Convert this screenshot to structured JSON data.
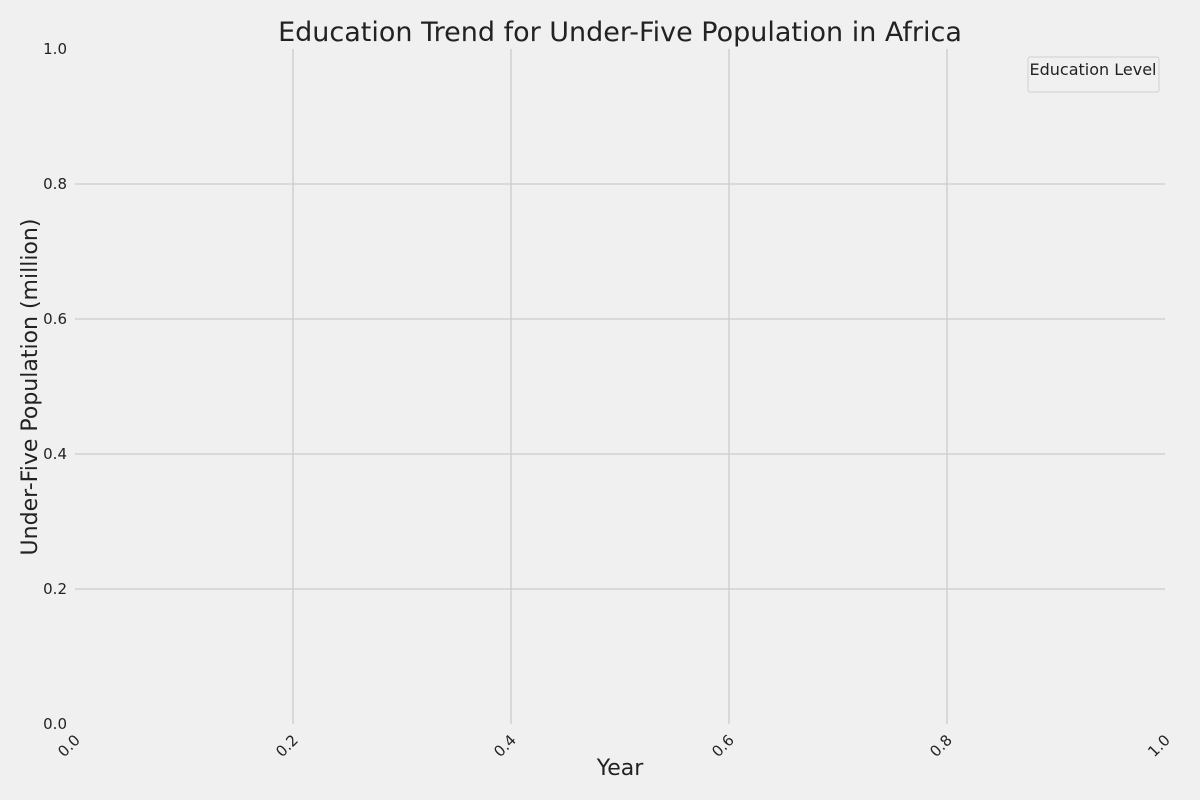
{
  "chart_data": {
    "type": "line",
    "title": "Education Trend for Under-Five Population in Africa",
    "xlabel": "Year",
    "ylabel": "Under-Five Population (million)",
    "xlim": [
      0.0,
      1.0
    ],
    "ylim": [
      0.0,
      1.0
    ],
    "x_ticks": [
      "0.0",
      "0.2",
      "0.4",
      "0.6",
      "0.8",
      "1.0"
    ],
    "y_ticks": [
      "0.0",
      "0.2",
      "0.4",
      "0.6",
      "0.8",
      "1.0"
    ],
    "x_tick_values": [
      0.0,
      0.2,
      0.4,
      0.6,
      0.8,
      1.0
    ],
    "y_tick_values": [
      0.0,
      0.2,
      0.4,
      0.6,
      0.8,
      1.0
    ],
    "grid": true,
    "legend": {
      "title": "Education Level",
      "placement": "top-right",
      "entries": []
    },
    "series": [],
    "colors": {
      "background": "#f0f0f0",
      "grid": "#cbcbcb",
      "text": "#222222"
    }
  }
}
